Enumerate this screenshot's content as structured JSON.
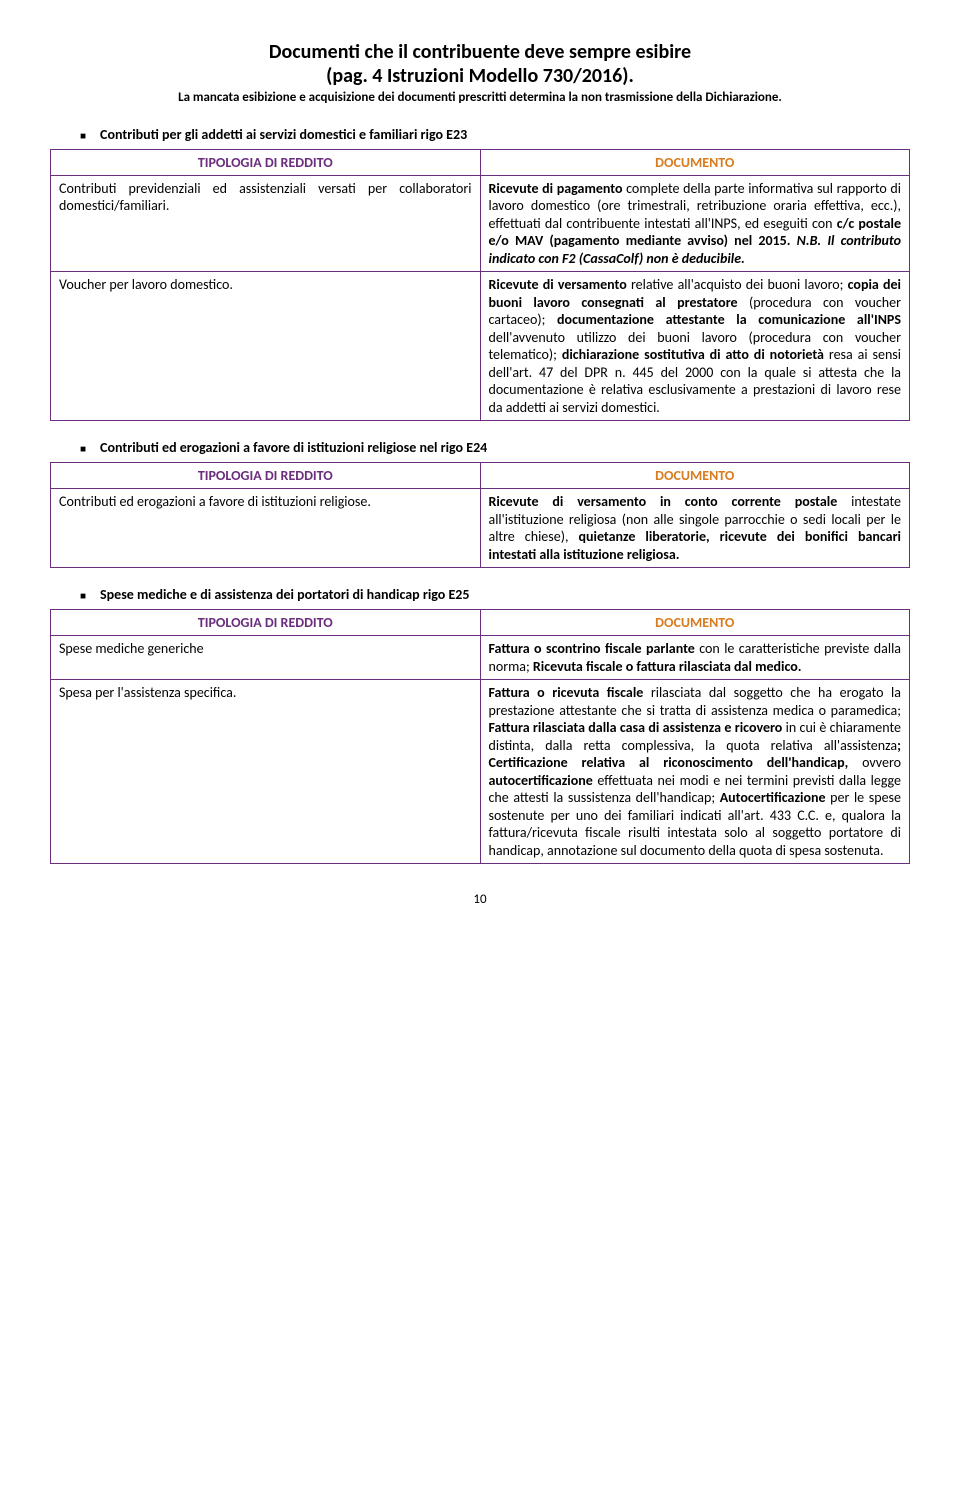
{
  "colors": {
    "table_border": "#6b2e7e",
    "left_header": "#6b2e7e",
    "right_header": "#d97b1f"
  },
  "header": {
    "title": "Documenti che il contribuente deve sempre esibire",
    "subtitle": "(pag. 4 Istruzioni Modello 730/2016).",
    "note": "La mancata esibizione e acquisizione dei documenti prescritti determina la non trasmissione della Dichiarazione."
  },
  "sections": [
    {
      "title": "Contributi per gli addetti ai servizi domestici e familiari rigo E23",
      "table": {
        "headerLeft": "TIPOLOGIA DI REDDITO",
        "headerRight": "DOCUMENTO",
        "rows": [
          {
            "leftHtml": "Contributi previdenziali ed assistenziali versati per collaboratori domestici/familiari.",
            "rightHtml": "<b>Ricevute di pagamento</b> complete della parte informativa sul rapporto di lavoro domestico (ore trimestrali, retribuzione oraria effettiva, ecc.), effettuati dal contribuente intestati all'INPS, ed eseguiti con <b>c/c postale e/o MAV (pagamento mediante avviso) nel 2015.</b> <b><i>N.B. Il contributo indicato con  F2 (CassaColf) non è deducibile.</i></b>"
          },
          {
            "leftHtml": "Voucher per lavoro domestico.",
            "rightHtml": "<b>Ricevute di versamento</b> relative all'acquisto dei buoni lavoro; <b>copia dei buoni lavoro consegnati al prestatore</b> (procedura con voucher cartaceo); <b>documentazione attestante la comunicazione all'INPS</b> dell'avvenuto utilizzo dei buoni lavoro (procedura con voucher telematico); <b>dichiarazione sostitutiva di atto di notorietà</b> resa ai sensi dell'art. 47 del DPR n. 445 del 2000 con la quale si attesta che la documentazione è relativa esclusivamente a prestazioni di lavoro rese da addetti ai servizi domestici."
          }
        ]
      }
    },
    {
      "title": "Contributi ed erogazioni a favore di istituzioni religiose nel rigo E24",
      "table": {
        "headerLeft": "TIPOLOGIA DI REDDITO",
        "headerRight": "DOCUMENTO",
        "rows": [
          {
            "leftHtml": "Contributi ed erogazioni a favore di istituzioni religiose.",
            "rightHtml": "<b>Ricevute di versamento in conto corrente postale</b> intestate all'istituzione religiosa (non alle singole parrocchie o sedi locali per le altre chiese), <b>quietanze liberatorie, ricevute dei bonifici bancari intestati alla istituzione religiosa.</b>"
          }
        ]
      }
    },
    {
      "title": "Spese mediche e di assistenza dei portatori di handicap rigo E25",
      "table": {
        "headerLeft": "TIPOLOGIA DI REDDITO",
        "headerRight": "DOCUMENTO",
        "rows": [
          {
            "leftHtml": "Spese mediche generiche",
            "rightHtml": "<b>Fattura o scontrino fiscale parlante</b> con le caratteristiche previste dalla norma; <b>Ricevuta fiscale o fattura rilasciata dal medico.</b>"
          },
          {
            "leftHtml": "Spesa per l'assistenza specifica.",
            "rightHtml": "<b>Fattura o ricevuta fiscale</b> rilasciata dal soggetto che ha erogato la prestazione attestante che si tratta di assistenza medica o paramedica; <b>Fattura rilasciata dalla casa di assistenza e ricovero</b> in cui è chiaramente distinta, dalla retta complessiva, la quota relativa all'assistenza<b>; Certificazione relativa al riconoscimento dell'handicap,</b> ovvero <b>autocertificazione</b> effettuata nei modi e nei termini previsti dalla legge che attesti la sussistenza dell'handicap; <b>Autocertificazione</b> per le spese sostenute per uno dei familiari indicati all'art. 433 C.C. e, qualora la fattura/ricevuta fiscale risulti intestata solo al soggetto portatore di handicap, annotazione sul documento della quota di spesa sostenuta."
          }
        ]
      }
    }
  ],
  "pageNumber": "10"
}
